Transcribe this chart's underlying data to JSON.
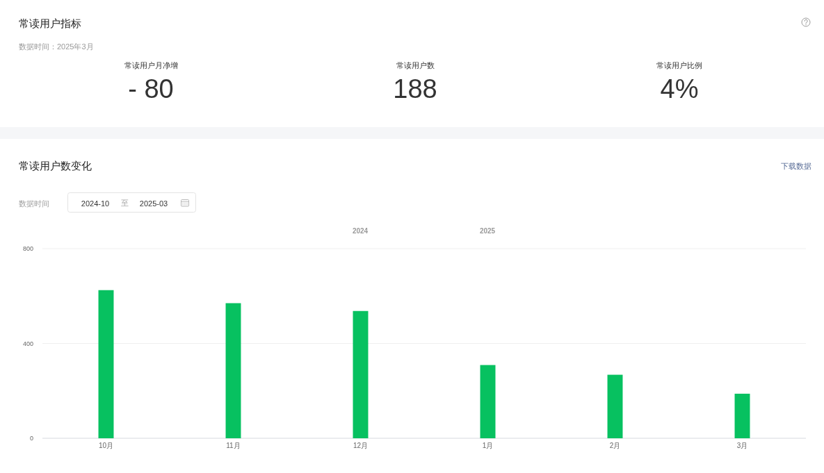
{
  "chart_data": [
    {
      "type": "other",
      "title": "常读用户指标",
      "subtitle": "数据时间：2025年3月",
      "annotations": [
        "常读用户月净增",
        "- 80",
        "常读用户数",
        "188",
        "常读用户比例",
        "4%"
      ]
    },
    {
      "type": "bar",
      "title": "常读用户数变化",
      "categories": [
        "10月",
        "11月",
        "12月",
        "1月",
        "2月",
        "3月"
      ],
      "values": [
        625,
        570,
        537,
        309,
        268,
        188
      ],
      "color": "#07c160",
      "ylim": [
        0,
        800
      ],
      "yticks": [
        0,
        400,
        800
      ],
      "grid": "y",
      "annotations": [
        "下载数据",
        "数据时间",
        "2024-10",
        "至",
        "2025-03",
        "2024",
        "2025"
      ]
    }
  ]
}
